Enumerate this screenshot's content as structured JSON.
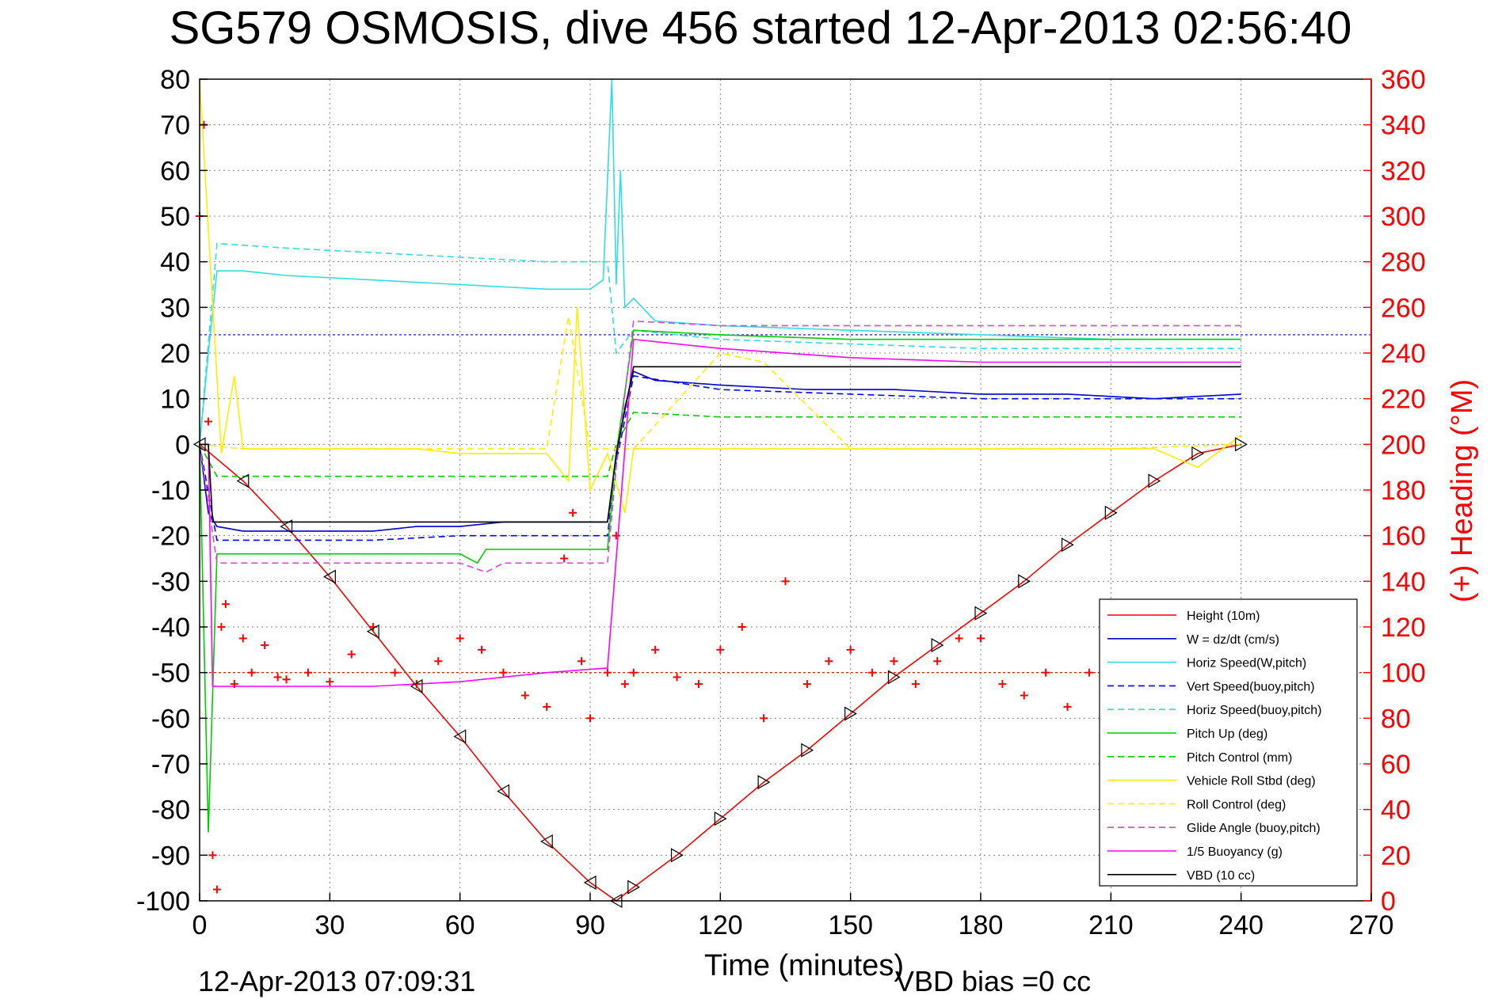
{
  "chart_data": {
    "type": "line",
    "title": "SG579 OSMOSIS, dive 456 started 12-Apr-2013 02:56:40",
    "xlabel": "Time (minutes)",
    "ylabel_right": "(+) Heading (°M)",
    "footer_timestamp": "12-Apr-2013 07:09:31",
    "footer_bias": "VBD bias =0 cc",
    "xlim": [
      0,
      270
    ],
    "ylim": [
      -100,
      80
    ],
    "ylim_right": [
      0,
      360
    ],
    "x_ticks": [
      "0",
      "30",
      "60",
      "90",
      "120",
      "150",
      "180",
      "210",
      "240",
      "270"
    ],
    "y_ticks": [
      "80",
      "70",
      "60",
      "50",
      "40",
      "30",
      "20",
      "10",
      "0",
      "-10",
      "-20",
      "-30",
      "-40",
      "-50",
      "-60",
      "-70",
      "-80",
      "-90",
      "-100"
    ],
    "y_ticks_right": [
      "360",
      "340",
      "320",
      "300",
      "280",
      "260",
      "240",
      "220",
      "200",
      "180",
      "160",
      "140",
      "120",
      "100",
      "80",
      "60",
      "40",
      "20",
      "0"
    ],
    "grid": true,
    "legend_position": "bottom-right",
    "series": [
      {
        "name": "Height (10m)",
        "color": "#ff0000",
        "style": "solid",
        "x": [
          0,
          10,
          20,
          30,
          40,
          50,
          60,
          70,
          80,
          90,
          96,
          100,
          110,
          120,
          130,
          140,
          150,
          160,
          170,
          180,
          190,
          200,
          210,
          220,
          230,
          240
        ],
        "y": [
          0,
          -8,
          -18,
          -29,
          -41,
          -53,
          -64,
          -76,
          -87,
          -96,
          -100,
          -97,
          -90,
          -82,
          -74,
          -67,
          -59,
          -51,
          -44,
          -37,
          -30,
          -22,
          -15,
          -8,
          -2,
          0
        ]
      },
      {
        "name": "W = dz/dt (cm/s)",
        "color": "#0000cc",
        "style": "solid",
        "x": [
          0,
          2,
          4,
          10,
          20,
          30,
          40,
          50,
          60,
          70,
          80,
          90,
          94,
          96,
          98,
          100,
          105,
          120,
          140,
          160,
          180,
          200,
          220,
          240
        ],
        "y": [
          0,
          -15,
          -18,
          -19,
          -19,
          -19,
          -19,
          -18,
          -18,
          -17,
          -17,
          -17,
          -17,
          -3,
          8,
          16,
          14,
          13,
          12,
          12,
          11,
          11,
          10,
          11
        ]
      },
      {
        "name": "Horiz Speed(W,pitch)",
        "color": "#33dddd",
        "style": "solid",
        "x": [
          0,
          2,
          4,
          10,
          20,
          40,
          60,
          80,
          90,
          93,
          95,
          96,
          97,
          98,
          100,
          105,
          120,
          150,
          180,
          210,
          240
        ],
        "y": [
          0,
          20,
          38,
          38,
          37,
          36,
          35,
          34,
          34,
          36,
          80,
          35,
          60,
          30,
          32,
          27,
          26,
          25,
          24,
          23,
          23
        ]
      },
      {
        "name": "Vert Speed(buoy,pitch)",
        "color": "#0000ff",
        "style": "dashed",
        "x": [
          0,
          4,
          20,
          40,
          60,
          80,
          94,
          96,
          100,
          120,
          150,
          180,
          210,
          240
        ],
        "y": [
          0,
          -21,
          -21,
          -21,
          -20,
          -20,
          -20,
          -4,
          15,
          12,
          11,
          10,
          10,
          10
        ]
      },
      {
        "name": "Horiz Speed(buoy,pitch)",
        "color": "#33dddd",
        "style": "dashed",
        "x": [
          0,
          4,
          20,
          40,
          60,
          80,
          94,
          96,
          100,
          120,
          150,
          180,
          210,
          240
        ],
        "y": [
          0,
          44,
          43,
          42,
          41,
          40,
          40,
          20,
          25,
          23,
          22,
          21,
          21,
          21
        ]
      },
      {
        "name": "Pitch Up (deg)",
        "color": "#00cc00",
        "style": "solid",
        "x": [
          0,
          2,
          4,
          20,
          40,
          60,
          64,
          66,
          70,
          80,
          94,
          96,
          100,
          120,
          150,
          180,
          210,
          240
        ],
        "y": [
          0,
          -85,
          -24,
          -24,
          -24,
          -24,
          -26,
          -23,
          -23,
          -23,
          -23,
          -2,
          25,
          24,
          23,
          23,
          23,
          23
        ]
      },
      {
        "name": "Pitch Control (mm)",
        "color": "#00cc00",
        "style": "dashed",
        "x": [
          0,
          4,
          20,
          40,
          60,
          80,
          94,
          96,
          100,
          120,
          150,
          180,
          210,
          240
        ],
        "y": [
          0,
          -7,
          -7,
          -7,
          -7,
          -7,
          -7,
          0,
          7,
          6,
          6,
          6,
          6,
          6
        ]
      },
      {
        "name": "Vehicle Roll Stbd (deg)",
        "color": "#ffee00",
        "style": "solid",
        "x": [
          0,
          5,
          8,
          10,
          20,
          30,
          40,
          50,
          60,
          70,
          80,
          85,
          87,
          90,
          94,
          98,
          100,
          110,
          120,
          130,
          140,
          150,
          160,
          170,
          180,
          200,
          220,
          230,
          240
        ],
        "y": [
          80,
          -2,
          15,
          -1,
          -1,
          -1,
          -1,
          -1,
          -2,
          -2,
          -2,
          -8,
          30,
          -10,
          -2,
          -15,
          -1,
          -1,
          -1,
          -1,
          -1,
          -1,
          -1,
          -1,
          -1,
          -1,
          -1,
          -5,
          2
        ]
      },
      {
        "name": "Roll Control (deg)",
        "color": "#ffee00",
        "style": "dashed",
        "x": [
          0,
          10,
          40,
          80,
          85,
          90,
          100,
          120,
          130,
          150,
          180,
          210,
          240
        ],
        "y": [
          0,
          -1,
          -1,
          -1,
          28,
          -1,
          -1,
          20,
          18,
          -1,
          -1,
          -1,
          0
        ]
      },
      {
        "name": "Glide Angle (buoy,pitch)",
        "color": "#dd44dd",
        "style": "dashed",
        "x": [
          0,
          4,
          20,
          40,
          60,
          66,
          70,
          80,
          94,
          96,
          100,
          120,
          150,
          180,
          210,
          240
        ],
        "y": [
          0,
          -26,
          -26,
          -26,
          -26,
          -28,
          -26,
          -26,
          -26,
          -5,
          27,
          26,
          26,
          26,
          26,
          26
        ]
      },
      {
        "name": "1/5 Buoyancy (g)",
        "color": "#ff00ff",
        "style": "solid",
        "x": [
          0,
          2,
          3,
          20,
          40,
          60,
          80,
          94,
          96,
          100,
          120,
          150,
          180,
          210,
          240
        ],
        "y": [
          0,
          0,
          -53,
          -53,
          -53,
          -52,
          -50,
          -49,
          -25,
          23,
          21,
          19,
          18,
          18,
          18
        ]
      },
      {
        "name": "VBD (10 cc)",
        "color": "#000000",
        "style": "solid",
        "x": [
          0,
          2,
          3,
          94,
          96,
          100,
          240
        ],
        "y": [
          0,
          0,
          -17,
          -17,
          -2,
          17,
          17
        ]
      }
    ],
    "heading_series": {
      "axis": "right",
      "color": "#ff0000",
      "marker": "+",
      "x": [
        0,
        1,
        2,
        3,
        4,
        5,
        6,
        8,
        10,
        12,
        15,
        18,
        20,
        25,
        30,
        35,
        40,
        45,
        50,
        55,
        60,
        65,
        70,
        75,
        80,
        84,
        86,
        88,
        90,
        94,
        96,
        98,
        100,
        105,
        110,
        115,
        120,
        125,
        130,
        135,
        140,
        145,
        150,
        155,
        160,
        165,
        170,
        175,
        180,
        185,
        190,
        195,
        200,
        205,
        210,
        215,
        220,
        225,
        230,
        235,
        240
      ],
      "y": [
        300,
        340,
        210,
        20,
        5,
        120,
        130,
        95,
        115,
        100,
        112,
        98,
        97,
        100,
        96,
        108,
        120,
        100,
        95,
        105,
        115,
        110,
        100,
        90,
        85,
        150,
        170,
        105,
        80,
        100,
        160,
        95,
        100,
        110,
        98,
        95,
        110,
        120,
        80,
        140,
        95,
        105,
        110,
        100,
        105,
        95,
        105,
        115,
        115,
        95,
        90,
        100,
        85,
        100,
        108,
        110,
        95,
        100,
        105,
        100,
        100
      ]
    },
    "reference_lines": [
      {
        "axis": "right",
        "value": 100,
        "color": "#ff0000",
        "style": "dotted"
      },
      {
        "axis": "left",
        "value": 24,
        "color": "#0000ff",
        "style": "dotted"
      }
    ]
  },
  "legend_entries": [
    {
      "label": "Height (10m)",
      "color": "#ff0000",
      "style": "solid"
    },
    {
      "label": "W = dz/dt (cm/s)",
      "color": "#0000cc",
      "style": "solid"
    },
    {
      "label": "Horiz Speed(W,pitch)",
      "color": "#33dddd",
      "style": "solid"
    },
    {
      "label": "Vert Speed(buoy,pitch)",
      "color": "#0000ff",
      "style": "dashed"
    },
    {
      "label": "Horiz Speed(buoy,pitch)",
      "color": "#33dddd",
      "style": "dashed"
    },
    {
      "label": "Pitch Up (deg)",
      "color": "#00cc00",
      "style": "solid"
    },
    {
      "label": "Pitch Control (mm)",
      "color": "#00cc00",
      "style": "dashed"
    },
    {
      "label": "Vehicle Roll Stbd (deg)",
      "color": "#ffee00",
      "style": "solid"
    },
    {
      "label": "Roll Control (deg)",
      "color": "#ffee00",
      "style": "dashed"
    },
    {
      "label": "Glide Angle (buoy,pitch)",
      "color": "#dd44dd",
      "style": "dashed"
    },
    {
      "label": "1/5 Buoyancy (g)",
      "color": "#ff00ff",
      "style": "solid"
    },
    {
      "label": "VBD (10 cc)",
      "color": "#000000",
      "style": "solid"
    }
  ]
}
